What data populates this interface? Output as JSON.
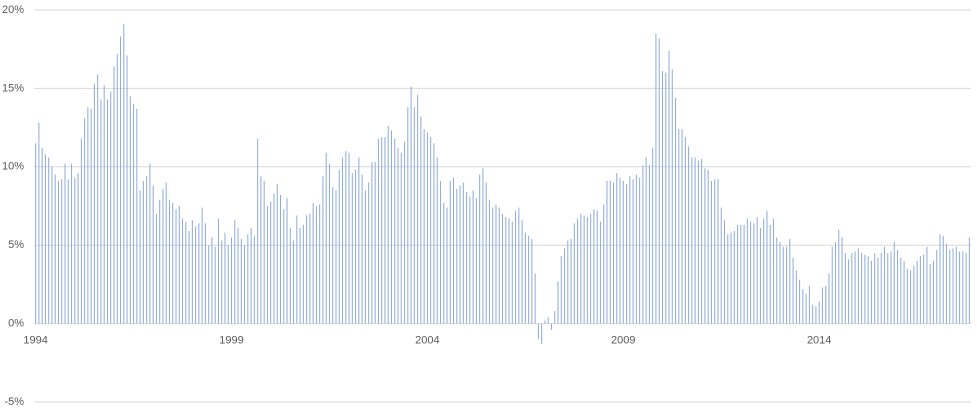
{
  "chart_data": {
    "type": "bar",
    "categories": [
      "1994",
      null,
      null,
      null,
      null,
      null,
      null,
      null,
      null,
      null,
      null,
      null,
      null,
      null,
      null,
      null,
      null,
      null,
      null,
      null,
      null,
      null,
      null,
      null,
      null,
      null,
      null,
      null,
      null,
      null,
      null,
      null,
      null,
      null,
      null,
      null,
      null,
      null,
      null,
      null,
      null,
      null,
      null,
      null,
      null,
      null,
      null,
      null,
      null,
      null,
      null,
      null,
      null,
      null,
      null,
      null,
      null,
      null,
      null,
      null,
      "1999",
      null,
      null,
      null,
      null,
      null,
      null,
      null,
      null,
      null,
      null,
      null,
      null,
      null,
      null,
      null,
      null,
      null,
      null,
      null,
      null,
      null,
      null,
      null,
      null,
      null,
      null,
      null,
      null,
      null,
      null,
      null,
      null,
      null,
      null,
      null,
      null,
      null,
      null,
      null,
      null,
      null,
      null,
      null,
      null,
      null,
      null,
      null,
      null,
      null,
      null,
      null,
      null,
      null,
      null,
      null,
      null,
      null,
      null,
      null,
      "2004",
      null,
      null,
      null,
      null,
      null,
      null,
      null,
      null,
      null,
      null,
      null,
      null,
      null,
      null,
      null,
      null,
      null,
      null,
      null,
      null,
      null,
      null,
      null,
      null,
      null,
      null,
      null,
      null,
      null,
      null,
      null,
      null,
      null,
      null,
      null,
      null,
      null,
      null,
      null,
      null,
      null,
      null,
      null,
      null,
      null,
      null,
      null,
      null,
      null,
      null,
      null,
      null,
      null,
      null,
      null,
      null,
      null,
      null,
      null,
      "2009",
      null,
      null,
      null,
      null,
      null,
      null,
      null,
      null,
      null,
      null,
      null,
      null,
      null,
      null,
      null,
      null,
      null,
      null,
      null,
      null,
      null,
      null,
      null,
      null,
      null,
      null,
      null,
      null,
      null,
      null,
      null,
      null,
      null,
      null,
      null,
      null,
      null,
      null,
      null,
      null,
      null,
      null,
      null,
      null,
      null,
      null,
      null,
      null,
      null,
      null,
      null,
      null,
      null,
      null,
      null,
      null,
      null,
      null,
      null,
      "2014",
      null,
      null,
      null,
      null,
      null,
      null,
      null,
      null,
      null,
      null,
      null,
      null,
      null,
      null,
      null,
      null,
      null,
      null,
      null,
      null,
      null,
      null,
      null,
      null,
      null,
      null,
      null,
      null,
      null,
      null,
      null,
      null,
      null,
      null,
      null,
      null,
      null,
      null,
      null,
      null,
      null,
      null,
      null,
      null,
      null,
      null
    ],
    "values": [
      11.5,
      12.8,
      11.2,
      10.8,
      10.6,
      10.0,
      9.5,
      9.1,
      9.2,
      10.2,
      9.2,
      10.2,
      9.3,
      9.6,
      11.8,
      13.1,
      13.8,
      13.7,
      15.3,
      15.9,
      14.3,
      15.2,
      14.3,
      14.8,
      16.4,
      17.2,
      18.3,
      19.1,
      17.1,
      14.5,
      14.0,
      13.7,
      8.5,
      9.1,
      9.4,
      10.2,
      8.8,
      7.0,
      7.9,
      8.6,
      9.0,
      7.9,
      7.7,
      7.3,
      7.5,
      6.7,
      6.5,
      5.9,
      6.6,
      6.2,
      6.4,
      7.4,
      6.4,
      5.0,
      5.5,
      4.9,
      6.7,
      5.3,
      5.8,
      5.0,
      5.5,
      6.6,
      6.1,
      5.4,
      5.0,
      5.7,
      6.1,
      5.6,
      11.8,
      9.4,
      9.1,
      7.5,
      7.8,
      8.3,
      8.9,
      8.2,
      7.3,
      8.0,
      6.1,
      5.3,
      6.9,
      6.1,
      6.3,
      6.9,
      7.0,
      7.7,
      7.5,
      7.6,
      9.4,
      10.9,
      10.2,
      8.7,
      8.5,
      9.8,
      10.6,
      11.0,
      10.9,
      9.6,
      9.8,
      10.6,
      9.5,
      8.5,
      9.0,
      10.3,
      10.3,
      11.8,
      11.9,
      11.9,
      12.6,
      12.3,
      11.8,
      11.2,
      10.9,
      11.6,
      13.8,
      15.1,
      13.8,
      14.6,
      13.2,
      12.4,
      12.2,
      11.9,
      11.5,
      10.6,
      9.1,
      7.7,
      7.4,
      9.1,
      9.3,
      8.6,
      8.8,
      9.0,
      8.4,
      8.1,
      8.5,
      8.0,
      9.5,
      9.9,
      9.0,
      7.9,
      7.4,
      7.6,
      7.4,
      7.0,
      6.8,
      6.7,
      6.5,
      7.2,
      7.4,
      6.6,
      5.8,
      5.6,
      5.4,
      3.2,
      -1.0,
      -1.3,
      0.2,
      0.4,
      -0.4,
      0.8,
      2.7,
      4.3,
      4.8,
      5.3,
      5.4,
      6.4,
      6.7,
      7.0,
      6.9,
      6.8,
      7.0,
      7.3,
      7.2,
      6.5,
      7.6,
      9.1,
      9.1,
      9.0,
      9.6,
      9.3,
      9.1,
      8.9,
      9.4,
      9.2,
      9.5,
      9.3,
      10.1,
      10.6,
      10.1,
      11.2,
      18.5,
      18.2,
      16.1,
      16.0,
      17.4,
      16.2,
      14.4,
      12.4,
      12.4,
      11.9,
      11.3,
      10.6,
      10.6,
      10.4,
      10.5,
      9.9,
      9.8,
      9.1,
      9.2,
      9.2,
      7.4,
      6.6,
      5.7,
      5.8,
      5.9,
      6.3,
      6.3,
      6.3,
      6.7,
      6.5,
      6.4,
      6.8,
      6.1,
      6.7,
      7.2,
      6.3,
      6.7,
      5.5,
      5.2,
      4.9,
      4.9,
      5.4,
      4.2,
      3.4,
      2.8,
      2.2,
      1.9,
      2.4,
      1.2,
      1.1,
      1.4,
      2.3,
      2.4,
      3.2,
      4.9,
      5.2,
      6.0,
      5.5,
      4.5,
      4.1,
      4.5,
      4.6,
      4.8,
      4.5,
      4.4,
      4.3,
      4.0,
      4.5,
      4.2,
      4.5,
      4.9,
      4.5,
      4.6,
      5.2,
      4.7,
      4.2,
      4.0,
      3.5,
      3.4,
      3.7,
      4.0,
      4.3,
      4.4,
      4.9,
      3.8,
      4.0,
      4.7,
      5.7,
      5.6,
      5.1,
      4.7,
      4.8,
      4.9,
      4.6,
      4.6,
      4.5,
      5.5
    ],
    "color": "#8eaadb",
    "ylim": [
      -5,
      20
    ],
    "yticks": [
      {
        "value": -5,
        "label": "-5%"
      },
      {
        "value": 0,
        "label": "0%"
      },
      {
        "value": 5,
        "label": "5%"
      },
      {
        "value": 10,
        "label": "10%"
      },
      {
        "value": 15,
        "label": "15%"
      },
      {
        "value": 20,
        "label": "20%"
      }
    ],
    "grid": true
  }
}
